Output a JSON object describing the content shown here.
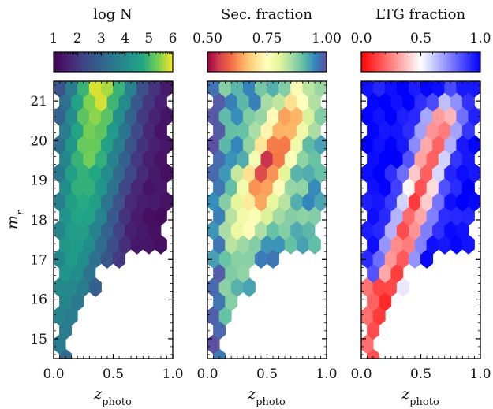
{
  "chart_data": [
    {
      "type": "heatmap",
      "subtype": "hexbin",
      "colorbar_title": "log N",
      "colorbar_ticks": [
        "1",
        "2",
        "3",
        "4",
        "5",
        "6"
      ],
      "colorbar_range": [
        1,
        6
      ],
      "colormap": "viridis",
      "xlabel_main": "z",
      "xlabel_sub": "photo",
      "x_ticks": [
        "0.0",
        "0.5",
        "1.0"
      ],
      "xlim": [
        0,
        1
      ],
      "ylabel_main": "m",
      "ylabel_sub": "r",
      "y_ticks": [
        "15",
        "16",
        "17",
        "18",
        "19",
        "20",
        "21"
      ],
      "ylim": [
        14.5,
        21.5
      ]
    },
    {
      "type": "heatmap",
      "subtype": "hexbin",
      "colorbar_title": "Sec. fraction",
      "colorbar_ticks": [
        "0.50",
        "0.75",
        "1.00"
      ],
      "colorbar_range": [
        0.5,
        1.0
      ],
      "colormap": "Spectral",
      "xlabel_main": "z",
      "xlabel_sub": "photo",
      "x_ticks": [
        "0.0",
        "0.5",
        "1.0"
      ],
      "xlim": [
        0,
        1
      ],
      "ylim": [
        14.5,
        21.5
      ]
    },
    {
      "type": "heatmap",
      "subtype": "hexbin",
      "colorbar_title": "LTG fraction",
      "colorbar_ticks": [
        "0.0",
        "0.5",
        "1.0"
      ],
      "colorbar_range": [
        0.0,
        1.0
      ],
      "colormap": "bwr_r",
      "xlabel_main": "z",
      "xlabel_sub": "photo",
      "x_ticks": [
        "0.0",
        "0.5",
        "1.0"
      ],
      "xlim": [
        0,
        1
      ],
      "ylim": [
        14.5,
        21.5
      ]
    }
  ]
}
